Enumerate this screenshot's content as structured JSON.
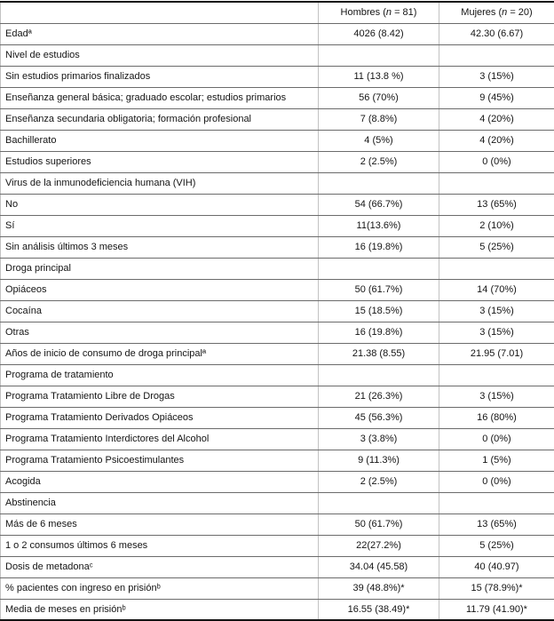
{
  "table": {
    "header": {
      "col1": {
        "prefix": "Hombres (",
        "n": "n",
        "suffix": " = 81)"
      },
      "col2": {
        "prefix": "Mujeres (",
        "n": "n",
        "suffix": " = 20)"
      }
    },
    "rows": [
      {
        "type": "data",
        "label": "Edadª",
        "hombres": "4026 (8.42)",
        "mujeres": "42.30 (6.67)"
      },
      {
        "type": "section",
        "label": "Nivel de estudios",
        "hombres": "",
        "mujeres": ""
      },
      {
        "type": "data",
        "label": "Sin estudios primarios finalizados",
        "hombres": "11 (13.8 %)",
        "mujeres": "3 (15%)"
      },
      {
        "type": "data",
        "label": "Enseñanza general básica; graduado escolar; estudios primarios",
        "hombres": "56 (70%)",
        "mujeres": "9 (45%)"
      },
      {
        "type": "data",
        "label": "Enseñanza secundaria obligatoria; formación profesional",
        "hombres": "7 (8.8%)",
        "mujeres": "4 (20%)"
      },
      {
        "type": "data",
        "label": "Bachillerato",
        "hombres": "4 (5%)",
        "mujeres": "4 (20%)"
      },
      {
        "type": "data",
        "label": "Estudios superiores",
        "hombres": "2 (2.5%)",
        "mujeres": "0 (0%)"
      },
      {
        "type": "section",
        "label": "Virus de la inmunodeficiencia humana (VIH)",
        "hombres": "",
        "mujeres": ""
      },
      {
        "type": "data",
        "label": "No",
        "hombres": "54 (66.7%)",
        "mujeres": "13 (65%)"
      },
      {
        "type": "data",
        "label": "Sí",
        "hombres": "11(13.6%)",
        "mujeres": "2 (10%)"
      },
      {
        "type": "data",
        "label": "Sin análisis últimos 3 meses",
        "hombres": "16 (19.8%)",
        "mujeres": "5 (25%)"
      },
      {
        "type": "section",
        "label": "Droga principal",
        "hombres": "",
        "mujeres": ""
      },
      {
        "type": "data",
        "label": "Opiáceos",
        "hombres": "50 (61.7%)",
        "mujeres": "14 (70%)"
      },
      {
        "type": "data",
        "label": "Cocaína",
        "hombres": "15 (18.5%)",
        "mujeres": "3 (15%)"
      },
      {
        "type": "data",
        "label": "Otras",
        "hombres": "16 (19.8%)",
        "mujeres": "3 (15%)"
      },
      {
        "type": "data",
        "label": "Años de inicio de consumo de droga principalª",
        "hombres": "21.38 (8.55)",
        "mujeres": "21.95 (7.01)"
      },
      {
        "type": "section",
        "label": "Programa de tratamiento",
        "hombres": "",
        "mujeres": ""
      },
      {
        "type": "data",
        "label": "Programa Tratamiento Libre de Drogas",
        "hombres": "21 (26.3%)",
        "mujeres": "3 (15%)"
      },
      {
        "type": "data",
        "label": "Programa Tratamiento Derivados Opiáceos",
        "hombres": "45 (56.3%)",
        "mujeres": "16 (80%)"
      },
      {
        "type": "data",
        "label": "Programa Tratamiento Interdictores del Alcohol",
        "hombres": "3 (3.8%)",
        "mujeres": "0 (0%)"
      },
      {
        "type": "data",
        "label": "Programa Tratamiento Psicoestimulantes",
        "hombres": "9 (11.3%)",
        "mujeres": "1 (5%)"
      },
      {
        "type": "data",
        "label": "Acogida",
        "hombres": "2 (2.5%)",
        "mujeres": "0 (0%)"
      },
      {
        "type": "section",
        "label": "Abstinencia",
        "hombres": "",
        "mujeres": ""
      },
      {
        "type": "data",
        "label": "Más de 6 meses",
        "hombres": "50 (61.7%)",
        "mujeres": "13 (65%)"
      },
      {
        "type": "data",
        "label": "1 o 2 consumos últimos 6 meses",
        "hombres": "22(27.2%)",
        "mujeres": "5 (25%)"
      },
      {
        "type": "data",
        "label": "Dosis de metadonaᶜ",
        "hombres": "34.04 (45.58)",
        "mujeres": "40 (40.97)"
      },
      {
        "type": "data",
        "label": "% pacientes con ingreso en prisiónᵇ",
        "hombres": "39 (48.8%)*",
        "mujeres": "15 (78.9%)*"
      },
      {
        "type": "data",
        "label": "Media de meses en prisiónᵇ",
        "hombres": "16.55 (38.49)*",
        "mujeres": "11.79 (41.90)*"
      }
    ]
  }
}
